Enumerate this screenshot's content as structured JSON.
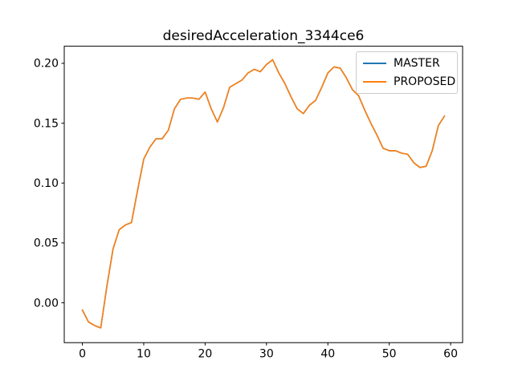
{
  "title": "desiredAcceleration_3344ce6",
  "legend": {
    "items": [
      {
        "label": "MASTER",
        "color": "#1f77b4"
      },
      {
        "label": "PROPOSED",
        "color": "#ff7f0e"
      }
    ],
    "position": "upper right",
    "border_color": "#cccccc"
  },
  "colors": {
    "background": "#ffffff",
    "spine": "#000000",
    "master_line": "#1f77b4",
    "proposed_line": "#ff7f0e"
  },
  "chart_data": {
    "type": "line",
    "title": "desiredAcceleration_3344ce6",
    "xlabel": "",
    "ylabel": "",
    "grid": false,
    "legend_position": "upper right",
    "xlim": [
      -2.95,
      61.95
    ],
    "ylim": [
      -0.0333,
      0.2143
    ],
    "xticks": [
      0,
      10,
      20,
      30,
      40,
      50,
      60
    ],
    "xtick_labels": [
      "0",
      "10",
      "20",
      "30",
      "40",
      "50",
      "60"
    ],
    "yticks": [
      0.0,
      0.05,
      0.1,
      0.15,
      0.2
    ],
    "ytick_labels": [
      "0.00",
      "0.05",
      "0.10",
      "0.15",
      "0.20"
    ],
    "x_start": 0,
    "x_step": 1,
    "series": [
      {
        "name": "MASTER",
        "color": "#1f77b4",
        "values": [
          -0.006,
          -0.016,
          -0.019,
          -0.021,
          0.014,
          0.045,
          0.061,
          0.065,
          0.067,
          0.094,
          0.12,
          0.13,
          0.137,
          0.137,
          0.144,
          0.162,
          0.17,
          0.171,
          0.171,
          0.17,
          0.176,
          0.162,
          0.151,
          0.163,
          0.18,
          0.183,
          0.186,
          0.192,
          0.195,
          0.193,
          0.199,
          0.203,
          0.192,
          0.183,
          0.172,
          0.162,
          0.158,
          0.165,
          0.169,
          0.18,
          0.192,
          0.197,
          0.196,
          0.188,
          0.178,
          0.173,
          0.161,
          0.15,
          0.14,
          0.129,
          0.127,
          0.127,
          0.125,
          0.124,
          0.117,
          0.113,
          0.114,
          0.127,
          0.148,
          0.156
        ]
      },
      {
        "name": "PROPOSED",
        "color": "#ff7f0e",
        "values": [
          -0.006,
          -0.016,
          -0.019,
          -0.021,
          0.014,
          0.045,
          0.061,
          0.065,
          0.067,
          0.094,
          0.12,
          0.13,
          0.137,
          0.137,
          0.144,
          0.162,
          0.17,
          0.171,
          0.171,
          0.17,
          0.176,
          0.162,
          0.151,
          0.163,
          0.18,
          0.183,
          0.186,
          0.192,
          0.195,
          0.193,
          0.199,
          0.203,
          0.192,
          0.183,
          0.172,
          0.162,
          0.158,
          0.165,
          0.169,
          0.18,
          0.192,
          0.197,
          0.196,
          0.188,
          0.178,
          0.173,
          0.161,
          0.15,
          0.14,
          0.129,
          0.127,
          0.127,
          0.125,
          0.124,
          0.117,
          0.113,
          0.114,
          0.127,
          0.148,
          0.156
        ]
      }
    ],
    "note": "PROPOSED overlaps MASTER exactly; only orange visible in plot"
  }
}
